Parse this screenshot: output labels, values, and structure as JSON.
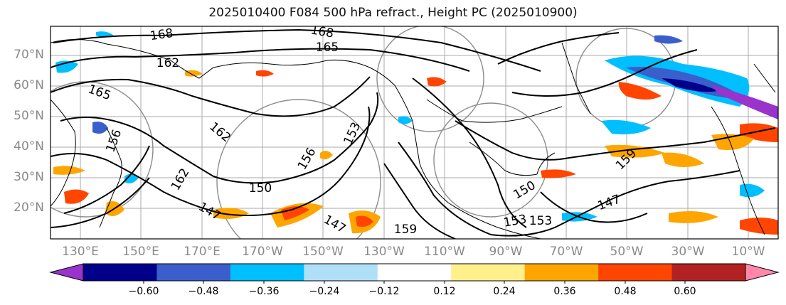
{
  "title": "2025010400 F084 500 hPa refract., Height PC (2025010900)",
  "lat_labels": [
    "70°N",
    "60°N",
    "50°N",
    "40°N",
    "30°N",
    "20°N"
  ],
  "lon_labels": [
    "130°E",
    "150°E",
    "170°E",
    "170°W",
    "150°W",
    "130°W",
    "110°W",
    "90°W",
    "70°W",
    "50°W",
    "30°W",
    "10°W"
  ],
  "contour_labels": {
    "c168a": "168",
    "c168b": "168",
    "c165a": "165",
    "c165b": "165",
    "c162a": "162",
    "c162b": "162",
    "c162c": "162",
    "c156": "156",
    "c153": "153",
    "c150a": "150",
    "c150b": "150",
    "c147a": "147",
    "c147b": "147",
    "c147c": "147",
    "c159a": "159",
    "c159b": "159",
    "c153b": "153",
    "c153c": "153",
    "c156b": "156"
  },
  "colorbar": {
    "colors": [
      "#9933cc",
      "#00008b",
      "#3a5fcd",
      "#00bfff",
      "#b0e0f8",
      "#ffffff",
      "#fff08c",
      "#ffa500",
      "#ff4500",
      "#b22222",
      "#ff88aa"
    ],
    "ticks": [
      "−0.60",
      "−0.48",
      "−0.36",
      "−0.24",
      "−0.12",
      "0.12",
      "0.24",
      "0.36",
      "0.48",
      "0.60"
    ]
  }
}
